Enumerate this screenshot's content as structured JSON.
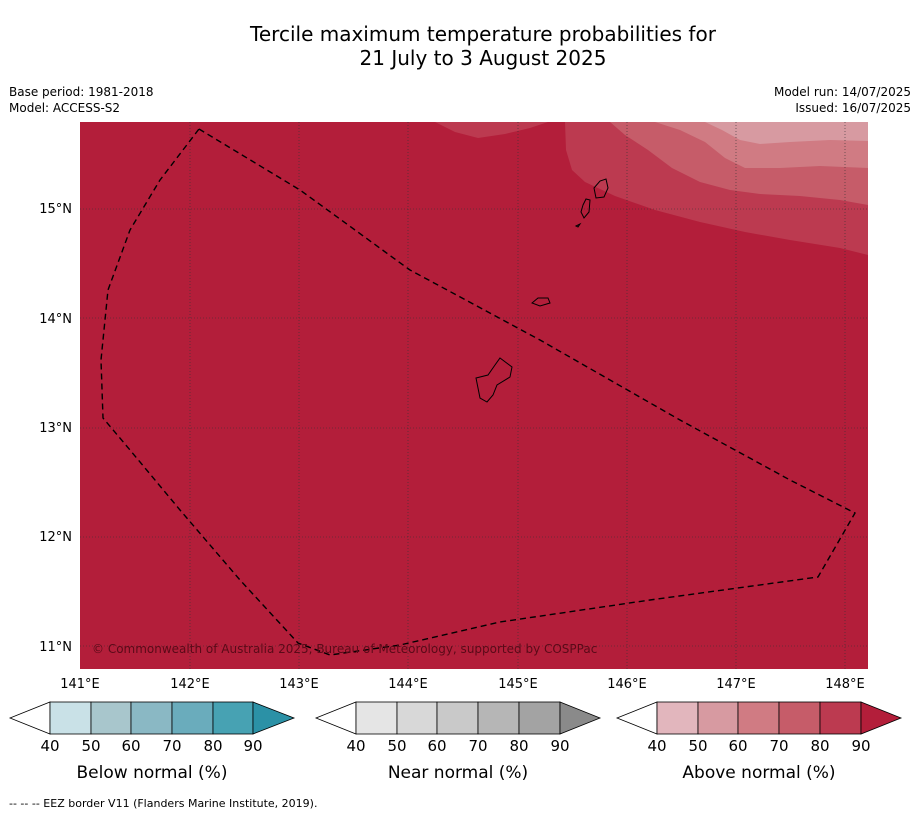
{
  "title": {
    "line1": "Tercile maximum temperature probabilities for",
    "line2": "21 July to 3 August 2025"
  },
  "meta": {
    "base_period": "Base period: 1981-2018",
    "model": "Model: ACCESS-S2",
    "model_run": "Model run: 14/07/2025",
    "issued": "Issued: 16/07/2025"
  },
  "map": {
    "lat_labels": [
      "15°N",
      "14°N",
      "13°N",
      "12°N",
      "11°N"
    ],
    "lon_labels": [
      "141°E",
      "142°E",
      "143°E",
      "144°E",
      "145°E",
      "146°E",
      "147°E",
      "148°E"
    ],
    "copyright": "© Commonwealth of Australia 2025, Bureau of Meteorology, supported by COSPPac",
    "colors": {
      "above_90": "#b31e3a",
      "above_80": "#bc3a50",
      "above_70": "#c65c69",
      "above_60": "#d07b83",
      "above_50": "#d79aa1"
    }
  },
  "colorbars": [
    {
      "title": "Below normal (%)",
      "ticks": [
        "40",
        "50",
        "60",
        "70",
        "80",
        "90"
      ],
      "colors": [
        "#c9e1e7",
        "#a8c6cc",
        "#8ab8c4",
        "#6aacbc",
        "#47a2b3",
        "#2b91a6"
      ]
    },
    {
      "title": "Near normal (%)",
      "ticks": [
        "40",
        "50",
        "60",
        "70",
        "80",
        "90"
      ],
      "colors": [
        "#e5e5e5",
        "#d8d8d8",
        "#c9c9c9",
        "#b6b6b6",
        "#a3a3a3",
        "#8a8a8a"
      ]
    },
    {
      "title": "Above normal (%)",
      "ticks": [
        "40",
        "50",
        "60",
        "70",
        "80",
        "90"
      ],
      "colors": [
        "#e2b6bd",
        "#d79aa1",
        "#d07b83",
        "#c65c69",
        "#bc3a50",
        "#b31e3a"
      ]
    }
  ],
  "footer": "--  --  -- EEZ border V11 (Flanders Marine Institute, 2019)."
}
